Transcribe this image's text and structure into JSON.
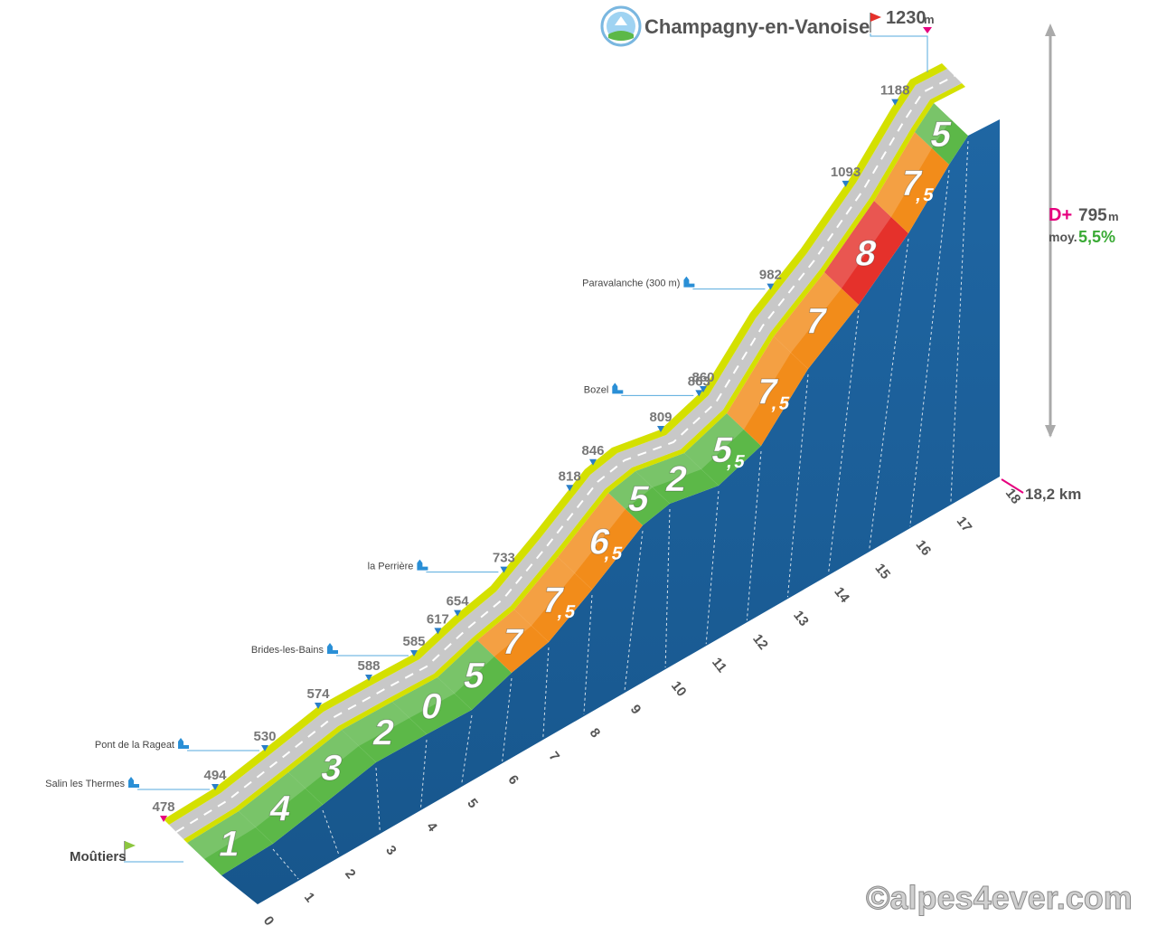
{
  "chart_data": {
    "type": "area",
    "title": "Champagny-en-Vanoise",
    "start_name": "Moûtiers",
    "finish_altitude": "1230",
    "finish_unit": "m",
    "total_distance": "18,2 km",
    "climb_label": "D+",
    "climb_value": "795",
    "climb_unit": "m",
    "avg_label": "moy.",
    "avg_value": "5,5%",
    "km_ticks": [
      "0",
      "1",
      "2",
      "3",
      "4",
      "5",
      "6",
      "7",
      "8",
      "9",
      "10",
      "11",
      "12",
      "13",
      "14",
      "15",
      "16",
      "17",
      "18"
    ],
    "gradients": [
      "1",
      "4",
      "3",
      "2",
      "0",
      "5",
      "7",
      "7,5",
      "6,5",
      "5",
      "2",
      "5,5",
      "7,5",
      "7",
      "8",
      "7,5",
      "5"
    ],
    "gradient_colors": [
      "#5cb848",
      "#5cb848",
      "#5cb848",
      "#5cb848",
      "#5cb848",
      "#5cb848",
      "#f28c1a",
      "#f28c1a",
      "#f28c1a",
      "#5cb848",
      "#5cb848",
      "#5cb848",
      "#f28c1a",
      "#f28c1a",
      "#e5312b",
      "#f28c1a",
      "#5cb848"
    ],
    "profile": {
      "x_km": [
        0,
        1,
        2,
        3,
        4,
        5,
        6,
        7,
        8,
        9,
        10,
        11,
        12,
        13,
        14,
        15,
        16,
        17,
        18.2
      ],
      "altitude_m": [
        478,
        494,
        530,
        574,
        588,
        585,
        617,
        654,
        733,
        818,
        846,
        809,
        863,
        982,
        1093,
        1188,
        1230,
        1230,
        1230
      ]
    },
    "altitude_labels": [
      {
        "text": "478",
        "km": 0.0
      },
      {
        "text": "494",
        "km": 1.0
      },
      {
        "text": "530",
        "km": 2.0
      },
      {
        "text": "574",
        "km": 3.0
      },
      {
        "text": "588",
        "km": 4.0
      },
      {
        "text": "585",
        "km": 5.0
      },
      {
        "text": "617",
        "km": 5.6
      },
      {
        "text": "654",
        "km": 6.1
      },
      {
        "text": "733",
        "km": 7.3
      },
      {
        "text": "818",
        "km": 8.7
      },
      {
        "text": "846",
        "km": 9.3
      },
      {
        "text": "809",
        "km": 11.0
      },
      {
        "text": "863",
        "km": 11.9
      },
      {
        "text": "860",
        "km": 12.0
      },
      {
        "text": "982",
        "km": 13.4
      },
      {
        "text": "1093",
        "km": 14.9
      },
      {
        "text": "1188",
        "km": 16.2
      }
    ],
    "places": [
      {
        "name": "Salin les Thermes",
        "km": 1.0
      },
      {
        "name": "Pont de la Rageat",
        "km": 2.0
      },
      {
        "name": "Brides-les-Bains",
        "km": 5.0
      },
      {
        "name": "la Perrière",
        "km": 7.3
      },
      {
        "name": "Bozel",
        "km": 11.9
      },
      {
        "name": "Paravalanche (300 m)",
        "km": 13.4
      }
    ],
    "colors": {
      "road": "#c8c8c8",
      "road_edge": "#d4e000",
      "wall": "#1d5f9a",
      "green": "#5cb848",
      "orange": "#f28c1a",
      "red": "#e5312b",
      "magenta": "#e6007e",
      "blue_marker": "#2a7fc8"
    }
  },
  "watermark": "©alpes4ever.com"
}
